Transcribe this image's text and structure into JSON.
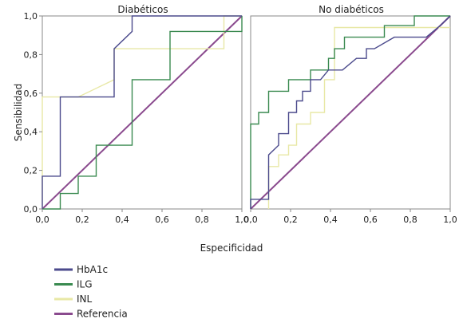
{
  "colors": {
    "HbA1c": "#4b4a8c",
    "ILG": "#3a8a50",
    "INL": "#e8e8a6",
    "Referencia": "#8a4a8e"
  },
  "chart_data": [
    {
      "type": "line",
      "title": "Diabéticos",
      "ylabel": "Sensibilidad",
      "xlabel": "Especificidad",
      "xlim": [
        0,
        1
      ],
      "ylim": [
        0,
        1
      ],
      "xticks": [
        "0,0",
        "0,2",
        "0,4",
        "0,6",
        "0,8",
        "1,0"
      ],
      "yticks": [
        "0,0",
        "0,2",
        "0,4",
        "0,6",
        "0,8",
        "1,0"
      ],
      "grid": false,
      "series": [
        {
          "name": "HbA1c",
          "points": [
            [
              0,
              0
            ],
            [
              0,
              0.17
            ],
            [
              0.09,
              0.17
            ],
            [
              0.09,
              0.58
            ],
            [
              0.36,
              0.58
            ],
            [
              0.36,
              0.83
            ],
            [
              0.45,
              0.92
            ],
            [
              0.45,
              1.0
            ],
            [
              1.0,
              1.0
            ]
          ]
        },
        {
          "name": "ILG",
          "points": [
            [
              0,
              0
            ],
            [
              0.09,
              0
            ],
            [
              0.09,
              0.08
            ],
            [
              0.18,
              0.08
            ],
            [
              0.18,
              0.17
            ],
            [
              0.27,
              0.17
            ],
            [
              0.27,
              0.33
            ],
            [
              0.45,
              0.33
            ],
            [
              0.45,
              0.67
            ],
            [
              0.64,
              0.67
            ],
            [
              0.64,
              0.92
            ],
            [
              1.0,
              0.92
            ],
            [
              1.0,
              1.0
            ]
          ]
        },
        {
          "name": "INL",
          "points": [
            [
              0,
              0
            ],
            [
              0,
              0.58
            ],
            [
              0.18,
              0.58
            ],
            [
              0.36,
              0.67
            ],
            [
              0.36,
              0.83
            ],
            [
              0.91,
              0.83
            ],
            [
              0.91,
              1.0
            ],
            [
              1.0,
              1.0
            ]
          ]
        },
        {
          "name": "Referencia",
          "points": [
            [
              0,
              0
            ],
            [
              1,
              1
            ]
          ]
        }
      ]
    },
    {
      "type": "line",
      "title": "No diabéticos",
      "ylabel": "Sensibilidad",
      "xlabel": "Especificidad",
      "xlim": [
        0,
        1
      ],
      "ylim": [
        0,
        1
      ],
      "xticks": [
        "0,0",
        "0,2",
        "0,4",
        "0,6",
        "0,8",
        "1,0"
      ],
      "yticks": [
        "0,0",
        "0,2",
        "0,4",
        "0,6",
        "0,8",
        "1,0"
      ],
      "grid": false,
      "series": [
        {
          "name": "HbA1c",
          "points": [
            [
              0,
              0
            ],
            [
              0,
              0.05
            ],
            [
              0.09,
              0.05
            ],
            [
              0.09,
              0.28
            ],
            [
              0.14,
              0.33
            ],
            [
              0.14,
              0.39
            ],
            [
              0.19,
              0.39
            ],
            [
              0.19,
              0.5
            ],
            [
              0.23,
              0.5
            ],
            [
              0.23,
              0.56
            ],
            [
              0.26,
              0.56
            ],
            [
              0.26,
              0.61
            ],
            [
              0.3,
              0.61
            ],
            [
              0.3,
              0.67
            ],
            [
              0.35,
              0.67
            ],
            [
              0.39,
              0.72
            ],
            [
              0.46,
              0.72
            ],
            [
              0.53,
              0.78
            ],
            [
              0.58,
              0.78
            ],
            [
              0.58,
              0.83
            ],
            [
              0.62,
              0.83
            ],
            [
              0.72,
              0.89
            ],
            [
              0.88,
              0.89
            ],
            [
              0.95,
              0.95
            ],
            [
              1.0,
              1.0
            ]
          ]
        },
        {
          "name": "ILG",
          "points": [
            [
              0,
              0
            ],
            [
              0,
              0.44
            ],
            [
              0.04,
              0.44
            ],
            [
              0.04,
              0.5
            ],
            [
              0.09,
              0.5
            ],
            [
              0.09,
              0.61
            ],
            [
              0.19,
              0.61
            ],
            [
              0.19,
              0.67
            ],
            [
              0.3,
              0.67
            ],
            [
              0.3,
              0.72
            ],
            [
              0.39,
              0.72
            ],
            [
              0.39,
              0.78
            ],
            [
              0.42,
              0.78
            ],
            [
              0.42,
              0.83
            ],
            [
              0.47,
              0.83
            ],
            [
              0.47,
              0.89
            ],
            [
              0.67,
              0.89
            ],
            [
              0.67,
              0.95
            ],
            [
              0.82,
              0.95
            ],
            [
              0.82,
              1.0
            ],
            [
              1.0,
              1.0
            ]
          ]
        },
        {
          "name": "INL",
          "points": [
            [
              0.09,
              0
            ],
            [
              0.09,
              0.22
            ],
            [
              0.14,
              0.22
            ],
            [
              0.14,
              0.28
            ],
            [
              0.19,
              0.28
            ],
            [
              0.19,
              0.33
            ],
            [
              0.23,
              0.33
            ],
            [
              0.23,
              0.44
            ],
            [
              0.3,
              0.44
            ],
            [
              0.3,
              0.5
            ],
            [
              0.37,
              0.5
            ],
            [
              0.37,
              0.67
            ],
            [
              0.42,
              0.67
            ],
            [
              0.42,
              0.94
            ],
            [
              1.0,
              0.94
            ]
          ]
        },
        {
          "name": "Referencia",
          "points": [
            [
              0,
              0
            ],
            [
              1,
              1
            ]
          ]
        }
      ]
    }
  ],
  "legend": {
    "items": [
      {
        "label": "HbA1c",
        "color_key": "HbA1c"
      },
      {
        "label": "ILG",
        "color_key": "ILG"
      },
      {
        "label": "INL",
        "color_key": "INL"
      },
      {
        "label": "Referencia",
        "color_key": "Referencia"
      }
    ]
  }
}
